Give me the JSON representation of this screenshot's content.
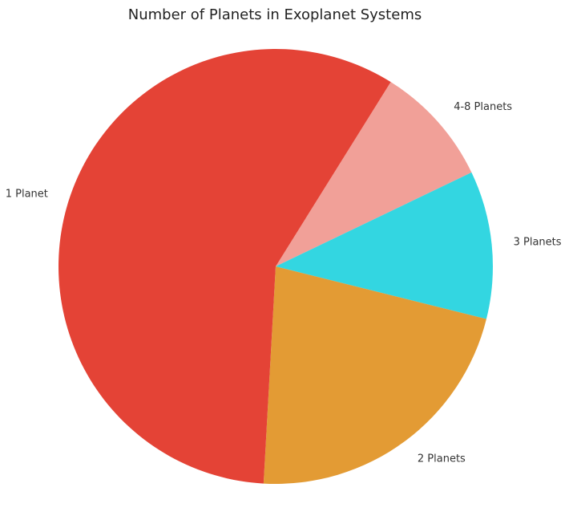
{
  "chart_data": {
    "type": "pie",
    "title": "Number of Planets in Exoplanet Systems",
    "start_angle_deg": -58,
    "direction": "clockwise-from-upper-right",
    "slices": [
      {
        "label": "4-8 Planets",
        "value": 9.0,
        "color": "#f1a098"
      },
      {
        "label": "3 Planets",
        "value": 11.0,
        "color": "#33d6e1"
      },
      {
        "label": "2 Planets",
        "value": 22.0,
        "color": "#e39b34"
      },
      {
        "label": "1 Planet",
        "value": 58.0,
        "color": "#e44336"
      }
    ]
  }
}
